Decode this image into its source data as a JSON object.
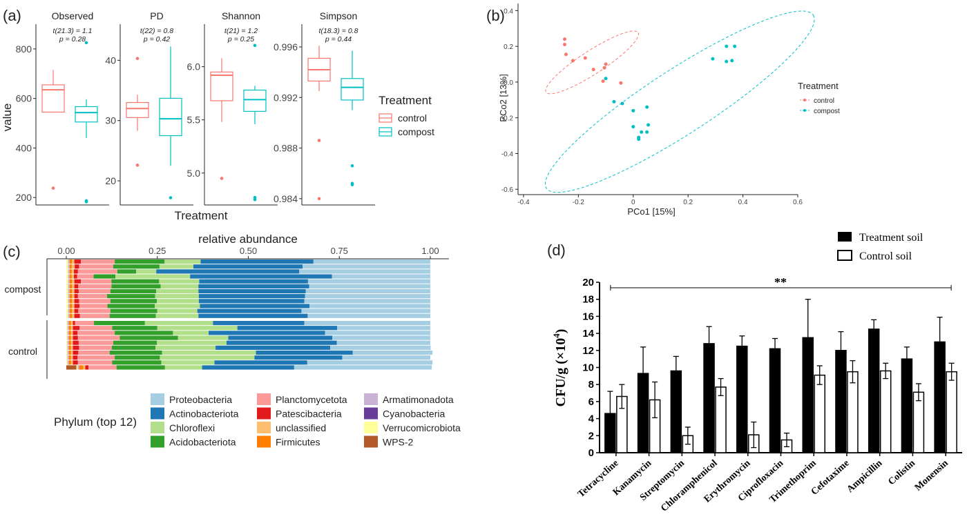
{
  "panel_labels": {
    "a": "(a)",
    "b": "(b)",
    "c": "(c)",
    "d": "(d)"
  },
  "colors": {
    "control": "#F8766D",
    "compost": "#00BFC4",
    "treatment_bar": "#000000",
    "control_bar": "#FFFFFF",
    "phyla": [
      "#A6CEE3",
      "#1F78B4",
      "#B2DF8A",
      "#33A02C",
      "#FB9A99",
      "#E31A1C",
      "#FDBF6F",
      "#FF7F00",
      "#CAB2D6",
      "#6A3D9A",
      "#FFFF99",
      "#B15928"
    ]
  },
  "chart_data": [
    {
      "id": "a",
      "type": "boxplot",
      "ylabel": "value",
      "xlabel": "Treatment",
      "legend": {
        "title": "Treatment",
        "entries": [
          "control",
          "compost"
        ]
      },
      "facets": [
        {
          "title": "Observed",
          "stat": "t(21.3) = 1.1",
          "p": "p = 0.28",
          "ylim": [
            170,
            900
          ],
          "ticks": [
            "200",
            "400",
            "600",
            "800"
          ],
          "tick_values": [
            200,
            400,
            600,
            800
          ],
          "control": {
            "q1": 545,
            "median": 635,
            "q3": 655,
            "wlo": 545,
            "whi": 715,
            "outliers": [
              238
            ]
          },
          "compost": {
            "q1": 505,
            "median": 543,
            "q3": 567,
            "wlo": 440,
            "whi": 597,
            "outliers": [
              825,
              183,
              187
            ]
          }
        },
        {
          "title": "PD",
          "stat": "t(22) = 0.8",
          "p": "p = 0.42",
          "ylim": [
            16,
            46
          ],
          "ticks": [
            "20",
            "30",
            "40"
          ],
          "tick_values": [
            20,
            30,
            40
          ],
          "control": {
            "q1": 30.5,
            "median": 32,
            "q3": 33,
            "wlo": 28.3,
            "whi": 34.3,
            "outliers": [
              40.3,
              22.6
            ]
          },
          "compost": {
            "q1": 27.5,
            "median": 30.3,
            "q3": 33.7,
            "wlo": 22.5,
            "whi": 42.3,
            "outliers": [
              17.2
            ]
          }
        },
        {
          "title": "Shannon",
          "stat": "t(21) = 1.2",
          "p": "p = 0.25",
          "ylim": [
            4.7,
            6.4
          ],
          "ticks": [
            "5.0",
            "5.5",
            "6.0"
          ],
          "tick_values": [
            5.0,
            5.5,
            6.0
          ],
          "control": {
            "q1": 5.68,
            "median": 5.92,
            "q3": 5.95,
            "wlo": 5.48,
            "whi": 6.08,
            "outliers": [
              4.95
            ]
          },
          "compost": {
            "q1": 5.58,
            "median": 5.69,
            "q3": 5.78,
            "wlo": 5.46,
            "whi": 5.82,
            "outliers": [
              6.2,
              4.77,
              4.75
            ]
          }
        },
        {
          "title": "Simpson",
          "stat": "t(18.3) = 0.8",
          "p": "p = 0.44",
          "ylim": [
            0.9835,
            0.9978
          ],
          "ticks": [
            "0.984",
            "0.988",
            "0.992",
            "0.996"
          ],
          "tick_values": [
            0.984,
            0.988,
            0.992,
            0.996
          ],
          "control": {
            "q1": 0.9933,
            "median": 0.9942,
            "q3": 0.9951,
            "wlo": 0.9925,
            "whi": 0.9961,
            "outliers": [
              0.9886,
              0.984
            ]
          },
          "compost": {
            "q1": 0.9918,
            "median": 0.9928,
            "q3": 0.9935,
            "wlo": 0.991,
            "whi": 0.9957,
            "outliers": [
              0.9866,
              0.9852,
              0.9851
            ]
          }
        }
      ]
    },
    {
      "id": "b",
      "type": "scatter",
      "xlabel": "PCo1 [15%]",
      "ylabel": "PCo2 [13%]",
      "xlim": [
        -0.42,
        0.6
      ],
      "ylim": [
        -0.63,
        0.44
      ],
      "xticks": [
        -0.4,
        -0.2,
        0.0,
        0.2,
        0.4,
        0.6
      ],
      "xtick_labels": [
        "-0.4",
        "-0.2",
        "0",
        "0.2",
        "0.4",
        "0.6"
      ],
      "yticks": [
        -0.6,
        -0.4,
        -0.2,
        0.0,
        0.2,
        0.4
      ],
      "ytick_labels": [
        "-0.6",
        "-0.4",
        "-0.2",
        "0.0",
        "0.2",
        "0.4"
      ],
      "legend": {
        "title": "Treatment",
        "entries": [
          "control",
          "compost"
        ]
      },
      "series": [
        {
          "name": "control",
          "points": [
            [
              -0.25,
              0.24
            ],
            [
              -0.25,
              0.21
            ],
            [
              -0.245,
              0.155
            ],
            [
              -0.22,
              0.12
            ],
            [
              -0.175,
              0.135
            ],
            [
              -0.145,
              0.07
            ],
            [
              -0.1,
              0.1
            ],
            [
              -0.105,
              0.08
            ],
            [
              -0.11,
              0.005
            ],
            [
              -0.045,
              -0.005
            ]
          ]
        },
        {
          "name": "compost",
          "points": [
            [
              -0.1,
              0.02
            ],
            [
              -0.07,
              -0.11
            ],
            [
              -0.04,
              -0.12
            ],
            [
              0.0,
              -0.16
            ],
            [
              0.05,
              -0.14
            ],
            [
              0.0,
              -0.25
            ],
            [
              0.02,
              -0.31
            ],
            [
              0.02,
              -0.32
            ],
            [
              0.05,
              -0.28
            ],
            [
              0.055,
              -0.24
            ],
            [
              0.03,
              -0.28
            ],
            [
              0.29,
              0.13
            ],
            [
              0.34,
              0.2
            ],
            [
              0.37,
              0.2
            ],
            [
              0.34,
              0.115
            ],
            [
              0.36,
              0.12
            ]
          ]
        }
      ],
      "ellipses": [
        {
          "name": "control",
          "cx": -0.15,
          "cy": 0.11,
          "rx": 0.2,
          "ry": 0.065,
          "angle_deg": -33
        },
        {
          "name": "compost",
          "cx": 0.17,
          "cy": -0.11,
          "rx": 0.58,
          "ry": 0.18,
          "angle_deg": -33
        }
      ]
    },
    {
      "id": "c",
      "type": "bar",
      "orientation": "horizontal-stacked",
      "xlabel": "relative abundance",
      "xticks": [
        "0.00",
        "0.25",
        "0.50",
        "0.75",
        "1.00"
      ],
      "xtick_values": [
        0,
        0.25,
        0.5,
        0.75,
        1.0
      ],
      "groups": [
        "compost",
        "control"
      ],
      "legend": {
        "title": "Phylum (top 12)",
        "entries": [
          "Proteobacteria",
          "Actinobacteriota",
          "Chloroflexi",
          "Acidobacteriota",
          "Planctomycetota",
          "Patescibacteria",
          "unclassified",
          "Firmicutes",
          "Armatimonadota",
          "Cyanobacteria",
          "Verrucomicrobiota",
          "WPS-2"
        ]
      },
      "stack_order": [
        "WPS-2",
        "Verrucomicrobiota",
        "Cyanobacteria",
        "Armatimonadota",
        "Firmicutes",
        "unclassified",
        "Patescibacteria",
        "Planctomycetota",
        "Acidobacteriota",
        "Chloroflexi",
        "Actinobacteriota",
        "Proteobacteria"
      ],
      "samples": [
        {
          "group": "compost",
          "values": [
            0,
            0.005,
            0,
            0.004,
            0.007,
            0.006,
            0.018,
            0.093,
            0.137,
            0.099,
            0.31,
            0.321
          ]
        },
        {
          "group": "compost",
          "values": [
            0,
            0.005,
            0,
            0.004,
            0.006,
            0.008,
            0.012,
            0.094,
            0.127,
            0.093,
            0.3,
            0.351
          ]
        },
        {
          "group": "compost",
          "values": [
            0,
            0.005,
            0,
            0.004,
            0.006,
            0.006,
            0.011,
            0.108,
            0.052,
            0.055,
            0.393,
            0.36
          ]
        },
        {
          "group": "compost",
          "values": [
            0,
            0.005,
            0,
            0.004,
            0.006,
            0.006,
            0.009,
            0.045,
            0.06,
            0.205,
            0.39,
            0.27
          ]
        },
        {
          "group": "compost",
          "values": [
            0,
            0.005,
            0,
            0.004,
            0.007,
            0.006,
            0.018,
            0.084,
            0.131,
            0.11,
            0.299,
            0.336
          ]
        },
        {
          "group": "compost",
          "values": [
            0,
            0.005,
            0,
            0.004,
            0.007,
            0.006,
            0.011,
            0.091,
            0.135,
            0.104,
            0.304,
            0.333
          ]
        },
        {
          "group": "compost",
          "values": [
            0,
            0.005,
            0,
            0.004,
            0.007,
            0.006,
            0.012,
            0.087,
            0.126,
            0.116,
            0.295,
            0.342
          ]
        },
        {
          "group": "compost",
          "values": [
            0,
            0.005,
            0,
            0.004,
            0.007,
            0.006,
            0.01,
            0.08,
            0.132,
            0.12,
            0.292,
            0.344
          ]
        },
        {
          "group": "compost",
          "values": [
            0,
            0.005,
            0,
            0.004,
            0.007,
            0.006,
            0.013,
            0.086,
            0.128,
            0.115,
            0.29,
            0.346
          ]
        },
        {
          "group": "compost",
          "values": [
            0,
            0.005,
            0,
            0.004,
            0.007,
            0.006,
            0.014,
            0.077,
            0.13,
            0.124,
            0.301,
            0.332
          ]
        },
        {
          "group": "compost",
          "values": [
            0,
            0.005,
            0,
            0.004,
            0.007,
            0.006,
            0.011,
            0.088,
            0.129,
            0.11,
            0.286,
            0.354
          ]
        },
        {
          "group": "compost",
          "values": [
            0,
            0.005,
            0,
            0.004,
            0.007,
            0.006,
            0.015,
            0.082,
            0.127,
            0.117,
            0.3,
            0.337
          ]
        },
        {
          "group": "control",
          "values": [
            0,
            0.003,
            0,
            0.004,
            0.006,
            0.005,
            0.006,
            0.052,
            0.14,
            0.187,
            0.251,
            0.346
          ]
        },
        {
          "group": "control",
          "values": [
            0,
            0.003,
            0,
            0.004,
            0.006,
            0.005,
            0.018,
            0.09,
            0.124,
            0.22,
            0.274,
            0.256
          ]
        },
        {
          "group": "control",
          "values": [
            0,
            0.003,
            0,
            0.004,
            0.006,
            0.005,
            0.013,
            0.102,
            0.16,
            0.098,
            0.32,
            0.289
          ]
        },
        {
          "group": "control",
          "values": [
            0,
            0.003,
            0,
            0.004,
            0.006,
            0.005,
            0.014,
            0.115,
            0.16,
            0.138,
            0.286,
            0.269
          ]
        },
        {
          "group": "control",
          "values": [
            0,
            0.003,
            0,
            0.004,
            0.006,
            0.005,
            0.016,
            0.095,
            0.12,
            0.191,
            0.303,
            0.257
          ]
        },
        {
          "group": "control",
          "values": [
            0,
            0.003,
            0,
            0.004,
            0.006,
            0.005,
            0.017,
            0.09,
            0.12,
            0.165,
            0.315,
            0.276
          ]
        },
        {
          "group": "control",
          "values": [
            0,
            0.003,
            0,
            0.004,
            0.006,
            0.005,
            0.015,
            0.086,
            0.144,
            0.258,
            0.266,
            0.219
          ]
        },
        {
          "group": "control",
          "values": [
            0,
            0.003,
            0,
            0.004,
            0.006,
            0.005,
            0.013,
            0.102,
            0.124,
            0.26,
            0.241,
            0.242
          ]
        },
        {
          "group": "control",
          "values": [
            0,
            0.003,
            0,
            0.004,
            0.006,
            0.005,
            0.014,
            0.094,
            0.135,
            0.146,
            0.255,
            0.344
          ]
        },
        {
          "group": "control",
          "values": [
            0.028,
            0.003,
            0,
            0.004,
            0.012,
            0.005,
            0.009,
            0.077,
            0.133,
            0.102,
            0.253,
            0.378
          ]
        }
      ]
    },
    {
      "id": "d",
      "type": "bar",
      "ylabel_main": "CFU/g  (×10",
      "ylabel_exp": "4",
      "ylabel_close": ")",
      "ylim": [
        0,
        20
      ],
      "yticks": [
        0,
        2,
        4,
        6,
        8,
        10,
        12,
        14,
        16,
        18,
        20
      ],
      "categories": [
        "Tetracycline",
        "Kanamycin",
        "Streptomycin",
        "Chloramphenicol",
        "Erythromycin",
        "Ciprofloxacin",
        "Trimethoprim",
        "Cefotaxime",
        "Ampicillin",
        "Colistin",
        "Monensin"
      ],
      "series": [
        {
          "name": "Treatment soil",
          "values": [
            4.6,
            9.3,
            9.6,
            12.8,
            12.5,
            12.2,
            13.5,
            12.0,
            14.5,
            11.0,
            13.0
          ],
          "errors": [
            2.6,
            3.1,
            1.7,
            2.0,
            1.2,
            1.2,
            4.5,
            2.2,
            1.1,
            1.4,
            2.9
          ]
        },
        {
          "name": "Control soil",
          "values": [
            6.6,
            6.2,
            2.0,
            7.7,
            2.1,
            1.5,
            9.1,
            9.5,
            9.6,
            7.1,
            9.5
          ],
          "errors": [
            1.4,
            2.1,
            1.0,
            1.0,
            1.5,
            0.8,
            1.1,
            1.3,
            0.9,
            1.0,
            1.0
          ]
        }
      ],
      "annotation": "**",
      "legend": {
        "entries": [
          "Treatment soil",
          "Control soil"
        ]
      }
    }
  ]
}
